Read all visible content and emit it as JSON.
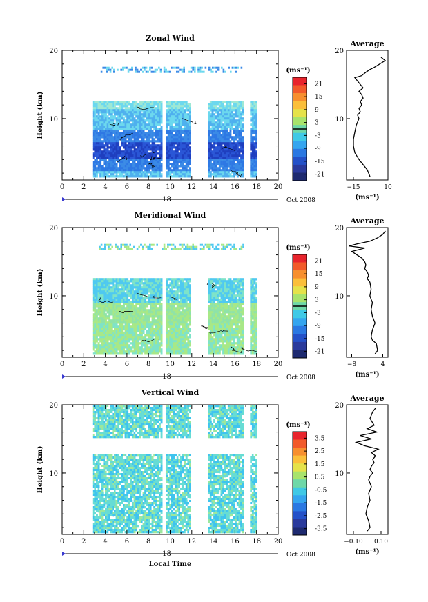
{
  "figure": {
    "x_label": "Local Time",
    "date_label": "Oct 2008",
    "day_label": "18",
    "colorbar_unit": "(ms⁻¹)",
    "avg_unit": "(ms⁻¹)",
    "height_label": "Height (km)"
  },
  "chart_data": [
    {
      "type": "heatmap",
      "title": "Zonal Wind",
      "ylabel": "Height (km)",
      "xlabel": "",
      "xlim": [
        0,
        20
      ],
      "ylim": [
        1,
        20
      ],
      "x_ticks": [
        "0",
        "2",
        "4",
        "6",
        "8",
        "10",
        "12",
        "14",
        "16",
        "18",
        "20"
      ],
      "y_ticks": [
        "10",
        "20"
      ],
      "colorbar": {
        "label": "(ms⁻¹)",
        "range": [
          -24,
          24
        ],
        "ticks": [
          "21",
          "15",
          "9",
          "3",
          "-3",
          "-9",
          "-15",
          "-21"
        ],
        "contour": 0
      },
      "data_blocks_x": [
        [
          2.8,
          9.2
        ],
        [
          9.6,
          11.8
        ],
        [
          13.5,
          16.8
        ],
        [
          17.4,
          18.0
        ]
      ],
      "data_extent_km": [
        1.5,
        12.6
      ],
      "upper_layer_km": [
        16.8,
        17.6
      ],
      "colors": {
        "low": "#1a3fc0",
        "mid": "#3a8ae6",
        "high": "#6cd8ee"
      }
    },
    {
      "type": "line",
      "title": "Average",
      "xlabel": "(ms⁻¹)",
      "xlim": [
        -20,
        10
      ],
      "ylim": [
        1,
        20
      ],
      "x_ticks": [
        "-15",
        "10"
      ],
      "y_ticks": [
        "10",
        "20"
      ],
      "x": [
        -3,
        -4,
        -5,
        -7,
        -9,
        -11,
        -14,
        -15,
        -15,
        -14,
        -13,
        -12,
        -11,
        -12,
        -10,
        -11,
        -9,
        -10,
        -8,
        -9,
        -11,
        -8,
        -10,
        -12,
        -14,
        -9,
        -6,
        -3,
        0,
        4,
        8,
        5
      ],
      "y": [
        1.5,
        2,
        2.5,
        3,
        3.5,
        4,
        5,
        6,
        7,
        8,
        9,
        9.5,
        10,
        10.5,
        11,
        11.5,
        12,
        12.5,
        13,
        13.5,
        14,
        14.5,
        15,
        15.5,
        16,
        16.3,
        16.8,
        17.2,
        17.5,
        18,
        18.5,
        19
      ]
    },
    {
      "type": "heatmap",
      "title": "Meridional Wind",
      "ylabel": "Height (km)",
      "xlabel": "",
      "xlim": [
        0,
        20
      ],
      "ylim": [
        1,
        20
      ],
      "x_ticks": [
        "0",
        "2",
        "4",
        "6",
        "8",
        "10",
        "12",
        "14",
        "16",
        "18",
        "20"
      ],
      "y_ticks": [
        "10",
        "20"
      ],
      "colorbar": {
        "label": "(ms⁻¹)",
        "range": [
          -24,
          24
        ],
        "ticks": [
          "21",
          "15",
          "9",
          "3",
          "-3",
          "-9",
          "-15",
          "-21"
        ],
        "contour": 0
      },
      "data_blocks_x": [
        [
          2.8,
          9.2
        ],
        [
          9.6,
          11.8
        ],
        [
          13.5,
          16.8
        ],
        [
          17.4,
          18.0
        ]
      ],
      "data_extent_km": [
        1.5,
        12.6
      ],
      "upper_layer_km": [
        16.8,
        17.6
      ],
      "colors": {
        "low": "#4fc9f0",
        "mid": "#7ee3c8",
        "high": "#a8e887"
      }
    },
    {
      "type": "line",
      "title": "Average",
      "xlabel": "(ms⁻¹)",
      "xlim": [
        -10,
        6
      ],
      "ylim": [
        1,
        20
      ],
      "x_ticks": [
        "-8",
        "4"
      ],
      "y_ticks": [
        "10",
        "20"
      ],
      "x": [
        1,
        2,
        1.5,
        0,
        -0.5,
        0,
        1,
        0.5,
        0,
        -0.5,
        0,
        -0.5,
        -1,
        -0.5,
        -1,
        -2,
        -1.5,
        -2,
        -3,
        -2.5,
        -3,
        -4,
        -6,
        -8,
        -3,
        -9,
        -6,
        -1,
        2,
        4,
        5
      ],
      "y": [
        1.5,
        2,
        3,
        3.5,
        4,
        5,
        6,
        6.5,
        7,
        8,
        9,
        9.5,
        10,
        11,
        12,
        12.5,
        13,
        13.5,
        14,
        14.5,
        15,
        15.5,
        16,
        16.5,
        17,
        17.3,
        17.6,
        18,
        18.5,
        19,
        19.5
      ]
    },
    {
      "type": "heatmap",
      "title": "Vertical Wind",
      "ylabel": "Height (km)",
      "xlabel": "Local Time",
      "xlim": [
        0,
        20
      ],
      "ylim": [
        1,
        20
      ],
      "x_ticks": [
        "0",
        "2",
        "4",
        "6",
        "8",
        "10",
        "12",
        "14",
        "16",
        "18",
        "20"
      ],
      "y_ticks": [
        "10",
        "20"
      ],
      "colorbar": {
        "label": "(ms⁻¹)",
        "range": [
          -4,
          4
        ],
        "ticks": [
          "3.5",
          "2.5",
          "1.5",
          "0.5",
          "-0.5",
          "-1.5",
          "-2.5",
          "-3.5"
        ]
      },
      "data_blocks_x": [
        [
          2.8,
          9.2
        ],
        [
          9.6,
          11.8
        ],
        [
          13.5,
          16.8
        ],
        [
          17.4,
          18.0
        ]
      ],
      "data_extent_km": [
        1.5,
        20
      ],
      "gap_km": [
        15.2,
        12.8
      ],
      "colors": {
        "low": "#3fc4ee",
        "mid": "#67dcd4",
        "high": "#9ce79d"
      }
    },
    {
      "type": "line",
      "title": "Average",
      "xlabel": "(ms⁻¹)",
      "xlim": [
        -0.15,
        0.15
      ],
      "ylim": [
        1,
        20
      ],
      "x_ticks": [
        "-0.10",
        "0.10"
      ],
      "y_ticks": [
        "10",
        "20"
      ],
      "x": [
        0.0,
        0.02,
        0.01,
        -0.01,
        0.0,
        0.02,
        0.01,
        0.03,
        0.01,
        0.02,
        0.04,
        0.02,
        0.03,
        0.05,
        0.04,
        0.06,
        0.03,
        0.08,
        -0.02,
        -0.08,
        0.03,
        -0.05,
        0.07,
        0.0,
        0.05,
        0.02,
        0.04,
        0.06
      ],
      "y": [
        1.5,
        2,
        3,
        4,
        5,
        6,
        7,
        8,
        9,
        9.5,
        10,
        10.5,
        11,
        11.5,
        12,
        12.5,
        13,
        13.5,
        14,
        14.5,
        15,
        15.5,
        16,
        16.5,
        17,
        18,
        19,
        19.5
      ]
    }
  ]
}
